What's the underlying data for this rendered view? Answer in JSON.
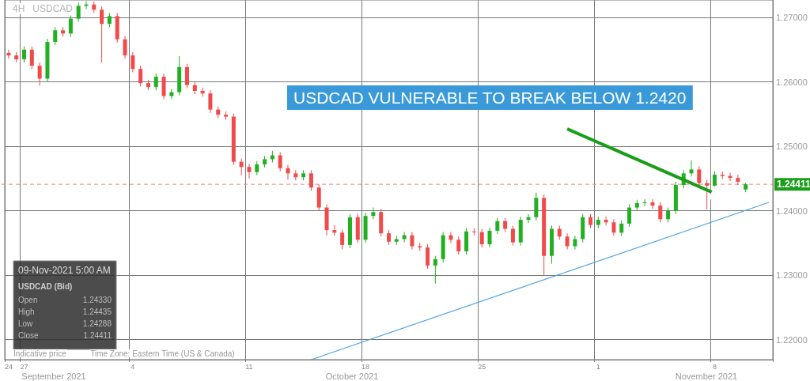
{
  "chart_data": {
    "type": "candlestick",
    "title": "USDCAD VULNERABLE TO BREAK BELOW 1.2420",
    "subtitle": "4H   USDCAD",
    "categories": [
      "24",
      null,
      "27",
      null,
      null,
      null,
      null,
      null,
      null,
      null,
      null,
      null,
      null,
      null,
      null,
      null,
      "4",
      null,
      null,
      null,
      null,
      null,
      null,
      null,
      null,
      null,
      null,
      null,
      null,
      null,
      null,
      "11",
      null,
      null,
      null,
      null,
      null,
      null,
      null,
      null,
      null,
      null,
      null,
      null,
      null,
      null,
      "18",
      null,
      null,
      null,
      null,
      null,
      null,
      null,
      null,
      null,
      null,
      null,
      null,
      null,
      null,
      "25",
      null,
      null,
      null,
      null,
      null,
      null,
      null,
      null,
      null,
      null,
      null,
      null,
      null,
      null,
      "1",
      null,
      null,
      null,
      null,
      null,
      null,
      null,
      null,
      null,
      null,
      null,
      null,
      null,
      null,
      "8",
      null,
      null,
      null,
      null,
      null,
      null,
      null
    ],
    "ohlc": [
      [
        1.2645,
        1.265,
        1.2636,
        1.2641
      ],
      [
        1.2641,
        1.2646,
        1.263,
        1.2635
      ],
      [
        1.2635,
        1.2655,
        1.263,
        1.265
      ],
      [
        1.265,
        1.2655,
        1.262,
        1.2625
      ],
      [
        1.2625,
        1.263,
        1.2594,
        1.2605
      ],
      [
        1.2605,
        1.2667,
        1.26,
        1.2662
      ],
      [
        1.2662,
        1.2685,
        1.2657,
        1.268
      ],
      [
        1.268,
        1.2685,
        1.267,
        1.2675
      ],
      [
        1.2675,
        1.2703,
        1.267,
        1.2698
      ],
      [
        1.2698,
        1.2723,
        1.2693,
        1.2718
      ],
      [
        1.2718,
        1.2725,
        1.2713,
        1.272
      ],
      [
        1.272,
        1.2725,
        1.2707,
        1.2712
      ],
      [
        1.2712,
        1.2717,
        1.263,
        1.269
      ],
      [
        1.269,
        1.2707,
        1.2685,
        1.2702
      ],
      [
        1.2702,
        1.2707,
        1.2661,
        1.2666
      ],
      [
        1.2666,
        1.2671,
        1.2636,
        1.2641
      ],
      [
        1.2641,
        1.2646,
        1.2615,
        1.262
      ],
      [
        1.262,
        1.2625,
        1.2593,
        1.2598
      ],
      [
        1.2598,
        1.2603,
        1.2587,
        1.2592
      ],
      [
        1.2592,
        1.2613,
        1.2587,
        1.2608
      ],
      [
        1.2608,
        1.2613,
        1.2573,
        1.2578
      ],
      [
        1.2578,
        1.2589,
        1.2573,
        1.2584
      ],
      [
        1.2584,
        1.264,
        1.2579,
        1.2623
      ],
      [
        1.2623,
        1.2628,
        1.259,
        1.2595
      ],
      [
        1.2595,
        1.26,
        1.2581,
        1.2586
      ],
      [
        1.2586,
        1.2591,
        1.2577,
        1.2582
      ],
      [
        1.2582,
        1.2587,
        1.2552,
        1.2557
      ],
      [
        1.2557,
        1.2562,
        1.2544,
        1.2549
      ],
      [
        1.2549,
        1.2554,
        1.2541,
        1.2546
      ],
      [
        1.2546,
        1.2551,
        1.2471,
        1.2476
      ],
      [
        1.2476,
        1.2481,
        1.2455,
        1.2468
      ],
      [
        1.2468,
        1.2473,
        1.245,
        1.246
      ],
      [
        1.246,
        1.2477,
        1.2455,
        1.2472
      ],
      [
        1.2472,
        1.2485,
        1.2467,
        1.248
      ],
      [
        1.248,
        1.2493,
        1.2475,
        1.2486
      ],
      [
        1.2486,
        1.2491,
        1.2461,
        1.2466
      ],
      [
        1.2466,
        1.2471,
        1.2448,
        1.2458
      ],
      [
        1.2458,
        1.2463,
        1.2447,
        1.2452
      ],
      [
        1.2452,
        1.2463,
        1.2447,
        1.2458
      ],
      [
        1.2458,
        1.2463,
        1.2431,
        1.2436
      ],
      [
        1.2436,
        1.2441,
        1.24,
        1.2405
      ],
      [
        1.2405,
        1.241,
        1.2362,
        1.237
      ],
      [
        1.237,
        1.2378,
        1.2361,
        1.2366
      ],
      [
        1.2366,
        1.2371,
        1.234,
        1.2347
      ],
      [
        1.2347,
        1.2395,
        1.2342,
        1.239
      ],
      [
        1.239,
        1.2395,
        1.235,
        1.2355
      ],
      [
        1.2355,
        1.2397,
        1.235,
        1.2392
      ],
      [
        1.2392,
        1.2405,
        1.2387,
        1.2398
      ],
      [
        1.2398,
        1.2403,
        1.236,
        1.2365
      ],
      [
        1.2365,
        1.237,
        1.2347,
        1.2352
      ],
      [
        1.2352,
        1.2361,
        1.2347,
        1.2356
      ],
      [
        1.2356,
        1.2367,
        1.2351,
        1.2362
      ],
      [
        1.2362,
        1.2367,
        1.234,
        1.2345
      ],
      [
        1.2345,
        1.235,
        1.2338,
        1.2343
      ],
      [
        1.2343,
        1.2348,
        1.231,
        1.2315
      ],
      [
        1.2315,
        1.233,
        1.2287,
        1.2325
      ],
      [
        1.2325,
        1.2367,
        1.232,
        1.2362
      ],
      [
        1.2362,
        1.2367,
        1.235,
        1.2355
      ],
      [
        1.2355,
        1.236,
        1.2332,
        1.2337
      ],
      [
        1.2337,
        1.2373,
        1.2332,
        1.2368
      ],
      [
        1.2368,
        1.2373,
        1.2362,
        1.2367
      ],
      [
        1.2367,
        1.2372,
        1.2343,
        1.2348
      ],
      [
        1.2348,
        1.2374,
        1.2343,
        1.2369
      ],
      [
        1.2369,
        1.2389,
        1.2364,
        1.2384
      ],
      [
        1.2384,
        1.2389,
        1.2367,
        1.2372
      ],
      [
        1.2372,
        1.2377,
        1.2346,
        1.2351
      ],
      [
        1.2351,
        1.2391,
        1.2346,
        1.2386
      ],
      [
        1.2386,
        1.2395,
        1.2381,
        1.239
      ],
      [
        1.239,
        1.2428,
        1.2385,
        1.242
      ],
      [
        1.242,
        1.2425,
        1.23,
        1.233
      ],
      [
        1.233,
        1.2377,
        1.2318,
        1.2372
      ],
      [
        1.2372,
        1.2377,
        1.2355,
        1.236
      ],
      [
        1.236,
        1.2365,
        1.234,
        1.2345
      ],
      [
        1.2345,
        1.2361,
        1.234,
        1.2356
      ],
      [
        1.2356,
        1.2395,
        1.2351,
        1.239
      ],
      [
        1.239,
        1.2395,
        1.2373,
        1.2378
      ],
      [
        1.2378,
        1.2391,
        1.2373,
        1.2386
      ],
      [
        1.2386,
        1.2391,
        1.2377,
        1.2382
      ],
      [
        1.2382,
        1.2387,
        1.2361,
        1.2366
      ],
      [
        1.2366,
        1.2385,
        1.2361,
        1.238
      ],
      [
        1.238,
        1.241,
        1.2375,
        1.2405
      ],
      [
        1.2405,
        1.2417,
        1.24,
        1.2412
      ],
      [
        1.2412,
        1.2418,
        1.2407,
        1.2413
      ],
      [
        1.2413,
        1.2418,
        1.2403,
        1.2408
      ],
      [
        1.2408,
        1.2413,
        1.2382,
        1.2387
      ],
      [
        1.2387,
        1.2405,
        1.2382,
        1.24
      ],
      [
        1.24,
        1.2445,
        1.2395,
        1.244
      ],
      [
        1.244,
        1.2463,
        1.2435,
        1.2458
      ],
      [
        1.2458,
        1.2478,
        1.2453,
        1.2464
      ],
      [
        1.2464,
        1.2469,
        1.2438,
        1.2443
      ],
      [
        1.2443,
        1.2448,
        1.2402,
        1.2439
      ],
      [
        1.2439,
        1.2461,
        1.2434,
        1.2456
      ],
      [
        1.2456,
        1.2461,
        1.2449,
        1.2454
      ],
      [
        1.2454,
        1.2459,
        1.2446,
        1.2451
      ],
      [
        1.2451,
        1.2456,
        1.244,
        1.2445
      ],
      [
        1.2433,
        1.24435,
        1.24288,
        1.24411
      ],
      null,
      null,
      null
    ],
    "series": [
      {
        "type": "line",
        "color": "#4ea3e0",
        "marker": "none",
        "values": [
          null,
          null,
          null,
          null,
          null,
          null,
          null,
          null,
          null,
          null,
          null,
          null,
          null,
          null,
          null,
          null,
          null,
          null,
          null,
          null,
          null,
          null,
          null,
          null,
          null,
          null,
          null,
          null,
          null,
          null,
          null,
          null,
          null,
          null,
          null,
          null,
          null,
          null,
          null,
          1.2169,
          null,
          null,
          null,
          null,
          null,
          null,
          null,
          null,
          null,
          null,
          null,
          null,
          null,
          null,
          null,
          null,
          null,
          null,
          null,
          null,
          null,
          null,
          null,
          null,
          null,
          null,
          null,
          null,
          null,
          null,
          null,
          null,
          null,
          null,
          null,
          null,
          null,
          null,
          null,
          null,
          null,
          null,
          null,
          null,
          null,
          null,
          null,
          null,
          null,
          null,
          null,
          null,
          null,
          null,
          null,
          null,
          null,
          null,
          1.2413
        ]
      },
      {
        "type": "line",
        "color": "#1a9e1a",
        "marker": "triangle",
        "values": [
          null,
          null,
          null,
          null,
          null,
          null,
          null,
          null,
          null,
          null,
          null,
          null,
          null,
          null,
          null,
          null,
          null,
          null,
          null,
          null,
          null,
          null,
          null,
          null,
          null,
          null,
          null,
          null,
          null,
          null,
          null,
          null,
          null,
          null,
          null,
          null,
          null,
          null,
          null,
          null,
          null,
          null,
          null,
          null,
          null,
          null,
          null,
          null,
          null,
          null,
          null,
          null,
          null,
          null,
          null,
          null,
          null,
          null,
          null,
          null,
          null,
          null,
          null,
          null,
          null,
          null,
          null,
          null,
          null,
          null,
          null,
          null,
          1.2527,
          null,
          null,
          null,
          null,
          null,
          null,
          null,
          null,
          null,
          null,
          null,
          null,
          null,
          null,
          null,
          null,
          null,
          null,
          1.2427,
          null,
          null,
          null,
          null,
          null,
          null,
          null
        ]
      }
    ],
    "ylim": [
      1.2169,
      1.2727
    ],
    "yticks": [
      {
        "value": 1.22,
        "label": "1.22000"
      },
      {
        "value": 1.23,
        "label": "1.23000"
      },
      {
        "value": 1.24,
        "label": "1.24000"
      },
      {
        "value": 1.25,
        "label": "1.25000"
      },
      {
        "value": 1.26,
        "label": "1.26000"
      },
      {
        "value": 1.27,
        "label": "1.27000"
      }
    ],
    "grid": true,
    "ref_lines": [
      {
        "axis": "y",
        "value": 1.24411,
        "label": "1.24411",
        "color": "#f08080",
        "line_style": "dashed"
      }
    ],
    "annotations": [
      "09-Nov-2021 5:00 AM",
      "USDCAD (Bid)",
      "Open",
      "1.24330",
      "High",
      "1.24435",
      "Low",
      "1.24288",
      "Close",
      "1.24411",
      "Indicative price",
      "Time Zone: Eastern Time (US & Canada)",
      "September 2021",
      "October 2021",
      "November 2021"
    ]
  }
}
